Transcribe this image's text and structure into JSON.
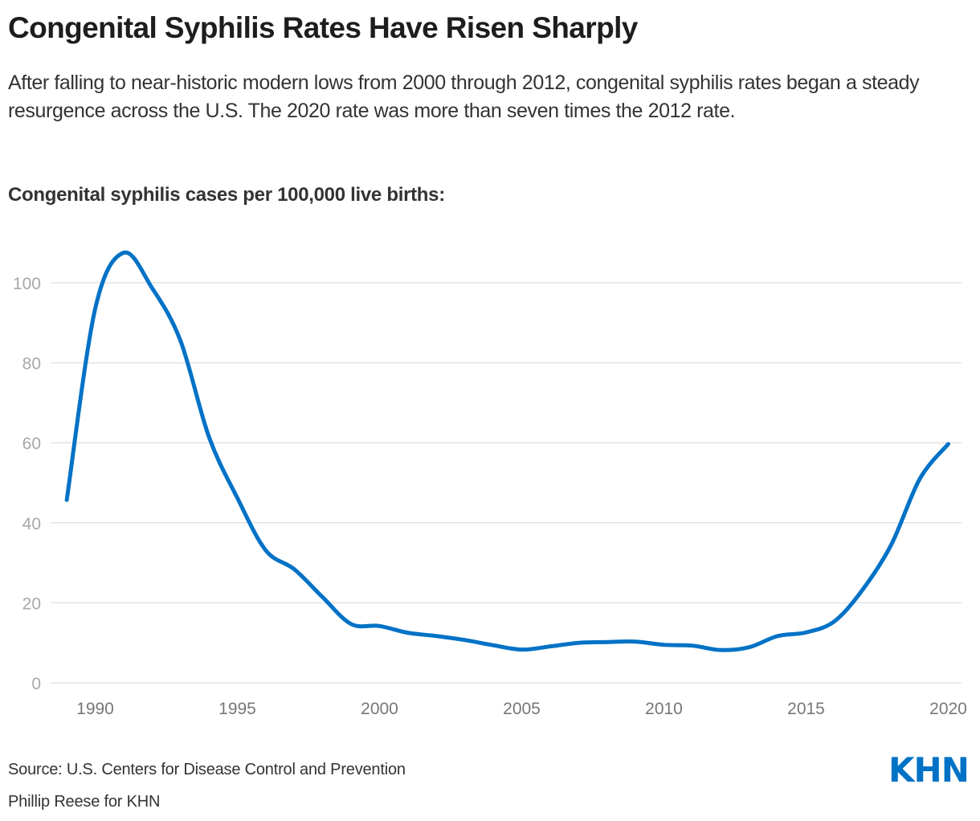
{
  "header": {
    "title": "Congenital Syphilis Rates Have Risen Sharply",
    "subtitle": "After falling to near-historic modern lows from 2000 through 2012, congenital syphilis rates began a steady resurgence across the U.S. The 2020 rate was more than seven times the 2012 rate.",
    "chart_heading": "Congenital syphilis cases per 100,000 live births:"
  },
  "footer": {
    "source": "Source: U.S. Centers for Disease Control and Prevention",
    "credit": "Phillip Reese for KHN",
    "logo_text": "KHN"
  },
  "colors": {
    "line": "#0072c6",
    "logo": "#0072c6",
    "grid": "#e3e3e3",
    "y_tick_text": "#a8a8a8",
    "x_tick_text": "#777777"
  },
  "chart_data": {
    "type": "line",
    "title": "Congenital syphilis cases per 100,000 live births:",
    "xlabel": "",
    "ylabel": "",
    "x": [
      1989,
      1990,
      1991,
      1992,
      1993,
      1994,
      1995,
      1996,
      1997,
      1998,
      1999,
      2000,
      2001,
      2002,
      2003,
      2004,
      2005,
      2006,
      2007,
      2008,
      2009,
      2010,
      2011,
      2012,
      2013,
      2014,
      2015,
      2016,
      2017,
      2018,
      2019,
      2020
    ],
    "series": [
      {
        "name": "Congenital syphilis rate",
        "values": [
          45.7,
          93.5,
          107.5,
          98.7,
          85.5,
          61.5,
          46.2,
          33.1,
          28.4,
          21.4,
          14.7,
          14.2,
          12.5,
          11.7,
          10.7,
          9.4,
          8.3,
          9.1,
          10.0,
          10.2,
          10.3,
          9.5,
          9.3,
          8.2,
          8.9,
          11.7,
          12.6,
          15.4,
          23.4,
          34.6,
          51.0,
          59.7
        ]
      }
    ],
    "xlim": [
      1989,
      2020
    ],
    "ylim": [
      0,
      110
    ],
    "x_ticks": [
      "1990",
      "1995",
      "2000",
      "2005",
      "2010",
      "2015",
      "2020"
    ],
    "y_ticks": [
      "0",
      "20",
      "40",
      "60",
      "80",
      "100"
    ],
    "grid": "horizontal",
    "legend": "none",
    "curve": "smooth"
  }
}
